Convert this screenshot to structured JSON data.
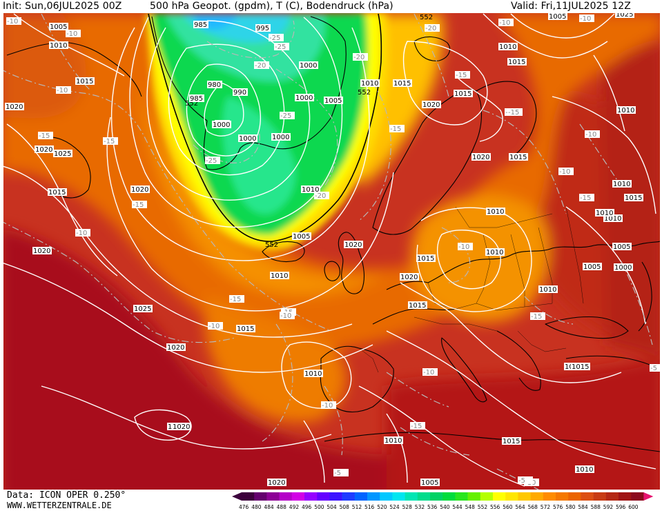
{
  "header": {
    "init": "Init: Sun,06JUL2025 00Z",
    "title": "500 hPa Geopot. (gpdm), T (C), Bodendruck (hPa)",
    "valid": "Valid: Fri,11JUL2025 12Z"
  },
  "footer": {
    "data_source": "Data: ICON OPER 0.250°",
    "website": "WWW.WETTERZENTRALE.DE"
  },
  "colors": {
    "c552": "#ffff00",
    "c556": "#ffea00",
    "c560": "#ffd200",
    "c564": "#ffb400",
    "c568": "#f89a00",
    "c572": "#f08000",
    "c576": "#e86a00",
    "c580": "#dc5410",
    "c584": "#cc3c10",
    "c588": "#bc2410",
    "c592": "#ac1010",
    "c596": "#a00818",
    "green_low": "#00dc44",
    "green_mid": "#22e870",
    "cyan": "#30e0c8",
    "blue": "#20c8ff",
    "isobar": "#ffffff",
    "isotherm": "#c8c8c8",
    "geo_line": "#000000"
  },
  "scale": {
    "ticks": [
      "476",
      "480",
      "484",
      "488",
      "492",
      "496",
      "500",
      "504",
      "508",
      "512",
      "516",
      "520",
      "524",
      "528",
      "532",
      "536",
      "540",
      "544",
      "548",
      "552",
      "556",
      "560",
      "564",
      "568",
      "572",
      "576",
      "580",
      "584",
      "588",
      "592",
      "596",
      "600"
    ],
    "colors": [
      "#3c003c",
      "#64006e",
      "#8c0096",
      "#b400c8",
      "#d200e6",
      "#9600ff",
      "#6400ff",
      "#3c14ff",
      "#1e3cff",
      "#0064ff",
      "#0096ff",
      "#00c8ff",
      "#00e6f0",
      "#00e6b4",
      "#00dc8c",
      "#00d264",
      "#00dc3c",
      "#28e61e",
      "#64f000",
      "#b4ff00",
      "#ffff00",
      "#ffe600",
      "#ffc800",
      "#ffaa00",
      "#ff8c00",
      "#f57800",
      "#eb6400",
      "#dc5014",
      "#c83c14",
      "#b42814",
      "#a01414",
      "#8c0a1e"
    ]
  },
  "geopotential_labels": [
    "552",
    "552",
    "552",
    "552",
    "985",
    "995",
    "980",
    "985",
    "990",
    "995"
  ],
  "pressure_labels": [
    {
      "t": "1005"
    },
    {
      "t": "1010"
    },
    {
      "t": "1015"
    },
    {
      "t": "1020"
    },
    {
      "t": "1025"
    },
    {
      "t": "1020"
    },
    {
      "t": "1015"
    },
    {
      "t": "1020"
    },
    {
      "t": "1025"
    },
    {
      "t": "1020"
    },
    {
      "t": "1000"
    },
    {
      "t": "1000"
    },
    {
      "t": "1005"
    },
    {
      "t": "1000"
    },
    {
      "t": "1000"
    },
    {
      "t": "1000"
    },
    {
      "t": "1005"
    },
    {
      "t": "1010"
    },
    {
      "t": "1015"
    },
    {
      "t": "1010"
    },
    {
      "t": "1015"
    },
    {
      "t": "1020"
    },
    {
      "t": "1015"
    },
    {
      "t": "1020"
    },
    {
      "t": "1025"
    },
    {
      "t": "1015"
    },
    {
      "t": "1005"
    },
    {
      "t": "1010"
    },
    {
      "t": "1015"
    },
    {
      "t": "1025"
    },
    {
      "t": "1020"
    },
    {
      "t": "1015"
    },
    {
      "t": "1010"
    },
    {
      "t": "1010"
    },
    {
      "t": "1020"
    },
    {
      "t": "1015"
    },
    {
      "t": "1010"
    },
    {
      "t": "1010"
    },
    {
      "t": "1015"
    },
    {
      "t": "1010"
    },
    {
      "t": "1005"
    },
    {
      "t": "1005"
    },
    {
      "t": "1000"
    },
    {
      "t": "1010"
    },
    {
      "t": "1010"
    },
    {
      "t": "1010"
    },
    {
      "t": "1015"
    },
    {
      "t": "1010"
    },
    {
      "t": "1010"
    },
    {
      "t": "1010"
    },
    {
      "t": "1020"
    },
    {
      "t": "1005"
    },
    {
      "t": "1020"
    },
    {
      "t": "1025"
    },
    {
      "t": "1010"
    },
    {
      "t": "1020"
    },
    {
      "t": "1015"
    }
  ],
  "temperature_labels": [
    "-10",
    "-10",
    "-10",
    "-15",
    "-15",
    "-15",
    "-10",
    "-15",
    "-15",
    "-20",
    "-25",
    "-25",
    "-25",
    "-20",
    "-20",
    "-25",
    "-20",
    "-15",
    "-15",
    "-15",
    "-10",
    "-10",
    "-15",
    "-10",
    "-15",
    "-10",
    "-10",
    "-10",
    "-15",
    "-10",
    "-10",
    "-10",
    "-10",
    "-10",
    "-10",
    "-5",
    "-5",
    "-5",
    "-20",
    "-15"
  ]
}
